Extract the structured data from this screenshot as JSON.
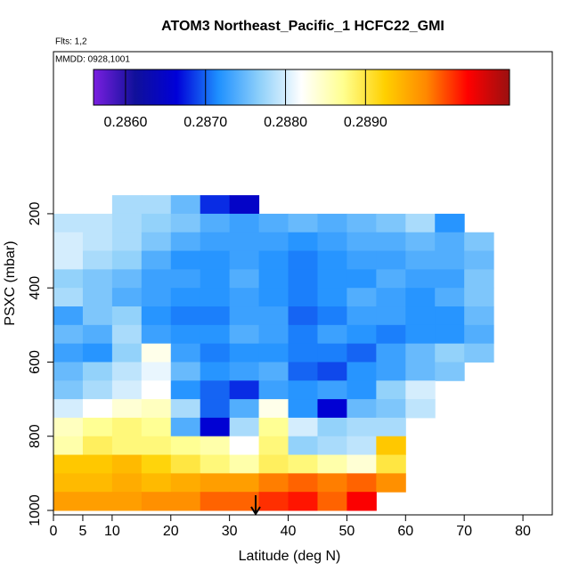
{
  "chart_data": {
    "type": "heatmap",
    "title": "ATOM3 Northeast_Pacific_1 HCFC22_GMI",
    "annotations": [
      "Flts: 1,2",
      "MMDD: 0928,1001"
    ],
    "xlabel": "Latitude (deg N)",
    "ylabel": "PSXC (mbar)",
    "xlim": [
      0,
      85
    ],
    "xticks": [
      0,
      5,
      10,
      20,
      30,
      40,
      50,
      60,
      70,
      80
    ],
    "ylim": [
      1012,
      -237
    ],
    "yticks": [
      200,
      400,
      600,
      800,
      1000
    ],
    "clim": [
      0.2856,
      0.2908
    ],
    "cticks": [
      {
        "value": 0.286,
        "label": "0.2860"
      },
      {
        "value": 0.287,
        "label": "0.2870"
      },
      {
        "value": 0.288,
        "label": "0.2880"
      },
      {
        "value": 0.289,
        "label": "0.2890"
      }
    ],
    "colorscale": [
      "#7a1fe0",
      "#10109a",
      "#0000d8",
      "#1e90ff",
      "#8fd0fa",
      "#ffffff",
      "#ffff90",
      "#ffd000",
      "#ff8800",
      "#ff0000",
      "#9a1010"
    ],
    "x_edges": [
      0,
      5,
      10,
      15,
      20,
      25,
      30,
      35,
      40,
      45,
      50,
      55,
      60,
      65,
      70,
      75
    ],
    "y_edges": [
      150,
      200,
      250,
      300,
      350,
      400,
      450,
      500,
      550,
      600,
      650,
      700,
      750,
      800,
      850,
      900,
      950,
      1000
    ],
    "values": [
      [
        null,
        null,
        0.2878,
        0.2878,
        0.2875,
        0.2868,
        0.2865,
        null,
        null,
        null,
        null,
        null,
        null,
        null,
        null
      ],
      [
        0.2879,
        0.2879,
        0.2878,
        0.2877,
        0.2876,
        0.2874,
        0.2873,
        0.2874,
        0.2875,
        0.2874,
        0.2875,
        0.2876,
        0.2878,
        0.2872,
        null
      ],
      [
        0.288,
        0.2879,
        0.2878,
        0.2876,
        0.2874,
        0.2873,
        0.2873,
        0.2873,
        0.2872,
        0.2873,
        0.2874,
        0.2874,
        0.2875,
        0.2874,
        0.2876
      ],
      [
        0.288,
        0.2878,
        0.2877,
        0.2874,
        0.2872,
        0.2872,
        0.2873,
        0.2872,
        0.2871,
        0.2872,
        0.2873,
        0.2873,
        0.2874,
        0.2874,
        0.2875
      ],
      [
        0.2877,
        0.2876,
        0.2875,
        0.2873,
        0.2873,
        0.2872,
        0.2874,
        0.2872,
        0.2871,
        0.2872,
        0.2872,
        0.2874,
        0.2873,
        0.2873,
        0.2876
      ],
      [
        0.2878,
        0.2876,
        0.2874,
        0.2873,
        0.2872,
        0.2872,
        0.2873,
        0.2872,
        0.2871,
        0.2872,
        0.2874,
        0.2873,
        0.2872,
        0.2874,
        0.2876
      ],
      [
        0.2873,
        0.2876,
        0.2877,
        0.2872,
        0.2871,
        0.2871,
        0.2873,
        0.2873,
        0.287,
        0.2871,
        0.2873,
        0.2873,
        0.2872,
        0.2872,
        0.2875
      ],
      [
        0.2875,
        0.2874,
        0.2878,
        0.2873,
        0.2872,
        0.2872,
        0.2874,
        0.2873,
        0.2871,
        0.2873,
        0.2872,
        0.2871,
        0.2872,
        0.2872,
        0.2874
      ],
      [
        0.2873,
        0.2872,
        0.2877,
        0.2883,
        0.2873,
        0.2871,
        0.2872,
        0.2872,
        0.2871,
        0.2871,
        0.287,
        0.2873,
        0.2875,
        0.2877,
        0.2876
      ],
      [
        0.2875,
        0.2877,
        0.2879,
        0.2881,
        0.2875,
        0.2872,
        0.2873,
        0.2874,
        0.287,
        0.2869,
        0.2872,
        0.2873,
        0.2875,
        0.2876,
        null
      ],
      [
        0.2876,
        0.2878,
        0.288,
        0.2882,
        0.2872,
        0.287,
        0.2868,
        0.2873,
        0.2872,
        0.2873,
        0.2872,
        0.2877,
        0.288,
        null,
        null
      ],
      [
        0.288,
        0.2882,
        0.2884,
        0.2885,
        0.2878,
        0.287,
        0.2874,
        0.2883,
        0.2872,
        0.2866,
        0.2875,
        0.2876,
        0.2879,
        null,
        null
      ],
      [
        0.2885,
        0.2887,
        0.2888,
        0.2887,
        0.2874,
        0.2866,
        0.2878,
        0.2887,
        0.288,
        0.2877,
        0.2878,
        0.2878,
        null,
        null,
        null
      ],
      [
        0.2886,
        0.2889,
        0.2888,
        0.2888,
        0.2887,
        0.2886,
        0.2882,
        0.2888,
        0.2877,
        0.2878,
        0.2879,
        0.2893,
        null,
        null,
        null
      ],
      [
        0.2893,
        0.2893,
        0.2894,
        0.2892,
        0.289,
        0.2888,
        0.2886,
        0.2889,
        0.2888,
        0.2886,
        0.2884,
        0.289,
        null,
        null,
        null
      ],
      [
        0.2894,
        0.2894,
        0.2895,
        0.2894,
        0.2895,
        0.2896,
        0.2896,
        0.2898,
        0.2899,
        0.2898,
        0.2899,
        0.2897,
        null,
        null,
        null
      ],
      [
        0.2896,
        0.2896,
        0.2896,
        0.2897,
        0.2897,
        0.2899,
        0.2899,
        0.2901,
        0.2902,
        0.2899,
        0.2903,
        null,
        null,
        null,
        null
      ]
    ]
  }
}
